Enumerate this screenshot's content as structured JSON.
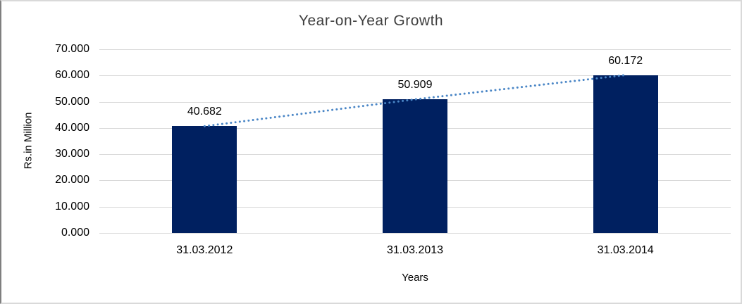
{
  "chart_data": {
    "type": "bar",
    "title": "Year-on-Year Growth",
    "xlabel": "Years",
    "ylabel": "Rs.in Million",
    "categories": [
      "31.03.2012",
      "31.03.2013",
      "31.03.2014"
    ],
    "values": [
      40.682,
      50.909,
      60.172
    ],
    "value_labels": [
      "40.682",
      "50.909",
      "60.172"
    ],
    "ylim": [
      0,
      70
    ],
    "ytick_values": [
      0,
      10,
      20,
      30,
      40,
      50,
      60,
      70
    ],
    "ytick_labels": [
      "0.000",
      "10.000",
      "20.000",
      "30.000",
      "40.000",
      "50.000",
      "60.000",
      "70.000"
    ],
    "grid": true,
    "legend": "none",
    "trendline": {
      "style": "dotted",
      "connects": "bar-tops"
    }
  },
  "colors": {
    "bar": "#002060",
    "trendline": "#4a86c6",
    "gridline": "#d9d9d9",
    "text": "#000000",
    "title_text": "#3f3f3f",
    "frame_border": "#d9d9d9",
    "frame_border_left": "#7f7f7f",
    "background": "#ffffff"
  }
}
